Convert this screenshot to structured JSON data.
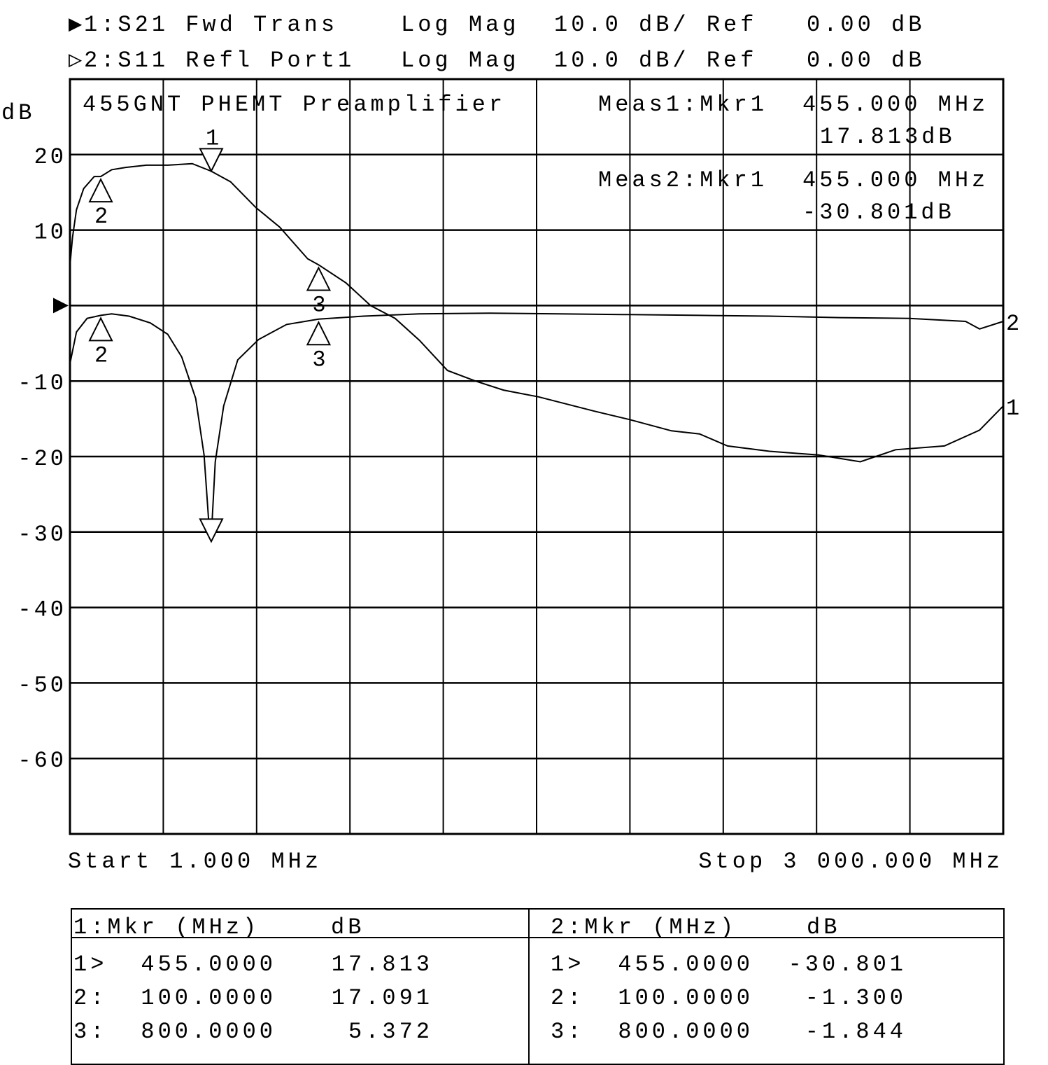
{
  "header": {
    "trace1": {
      "indicator": "▶",
      "label": "1:S21 Fwd Trans",
      "format": "Log Mag",
      "scale": "10.0 dB/ Ref",
      "ref": "0.00 dB"
    },
    "trace2": {
      "indicator": "▷",
      "label": "2:S11 Refl Port1",
      "format": "Log Mag",
      "scale": "10.0 dB/ Ref",
      "ref": "0.00 dB"
    }
  },
  "plot": {
    "title": "455GNT PHEMT Preamplifier",
    "meas1": {
      "label": "Meas1:Mkr1",
      "freq": "455.000 MHz",
      "value": "17.813dB"
    },
    "meas2": {
      "label": "Meas2:Mkr1",
      "freq": "455.000 MHz",
      "value": "-30.801dB"
    },
    "start": "Start 1.000 MHz",
    "stop": "Stop 3 000.000 MHz"
  },
  "chart_data": {
    "type": "line",
    "title": "455GNT PHEMT Preamplifier",
    "ylabel": "dB",
    "xlabel": "",
    "xlim": [
      1,
      3000
    ],
    "ylim": [
      -70,
      30
    ],
    "x_unit": "MHz",
    "yticks": [
      20,
      10,
      -10,
      -20,
      -30,
      -40,
      -50,
      -60
    ],
    "ref_level": 0,
    "grid": true,
    "grid_divisions": {
      "x": 10,
      "y": 10
    },
    "series": [
      {
        "name": "1",
        "x": [
          1,
          9,
          22,
          45,
          79,
          100,
          135,
          180,
          247,
          315,
          394,
          455,
          517,
          598,
          675,
          765,
          800,
          888,
          967,
          1046,
          1124,
          1214,
          1304,
          1394,
          1507,
          1687,
          1799,
          1934,
          2024,
          2114,
          2249,
          2406,
          2541,
          2654,
          2811,
          2924,
          3000
        ],
        "y": [
          5.3,
          9.0,
          12.7,
          15.5,
          17.1,
          17.1,
          18.0,
          18.3,
          18.6,
          18.6,
          18.8,
          17.8,
          16.4,
          13.0,
          10.4,
          6.2,
          5.4,
          3.0,
          0,
          -1.7,
          -4.6,
          -8.6,
          -10.0,
          -11.2,
          -12.1,
          -14.0,
          -15.1,
          -16.6,
          -17.0,
          -18.6,
          -19.3,
          -19.8,
          -20.7,
          -19.1,
          -18.6,
          -16.5,
          -13.3
        ]
      },
      {
        "name": "2",
        "x": [
          1,
          22,
          56,
          100,
          135,
          191,
          259,
          315,
          360,
          405,
          432,
          450,
          455,
          468,
          495,
          540,
          607,
          697,
          800,
          945,
          1124,
          1349,
          1574,
          1799,
          2024,
          2249,
          2474,
          2699,
          2879,
          2924,
          3000
        ],
        "y": [
          -7.7,
          -3.5,
          -1.7,
          -1.3,
          -1.1,
          -1.4,
          -2.3,
          -3.8,
          -6.8,
          -12.3,
          -19.8,
          -30.4,
          -30.8,
          -20.7,
          -13.3,
          -7.2,
          -4.5,
          -2.5,
          -1.8,
          -1.4,
          -1.1,
          -1.0,
          -1.1,
          -1.2,
          -1.3,
          -1.4,
          -1.6,
          -1.7,
          -2.1,
          -3.1,
          -2.1
        ]
      }
    ],
    "markers": [
      {
        "trace": "1",
        "id": "1",
        "freq": 455,
        "value": 17.813,
        "direction": "down",
        "active": true
      },
      {
        "trace": "1",
        "id": "2",
        "freq": 100,
        "value": 17.091,
        "direction": "up"
      },
      {
        "trace": "1",
        "id": "3",
        "freq": 800,
        "value": 5.372,
        "direction": "up"
      },
      {
        "trace": "2",
        "id": "1",
        "freq": 455,
        "value": -30.801,
        "direction": "down",
        "active": true
      },
      {
        "trace": "2",
        "id": "2",
        "freq": 100,
        "value": -1.3,
        "direction": "up"
      },
      {
        "trace": "2",
        "id": "3",
        "freq": 800,
        "value": -1.844,
        "direction": "up"
      }
    ],
    "colors": {
      "trace": "#000000",
      "background": "#ffffff"
    }
  },
  "table": {
    "left": {
      "header_mkr": "1:Mkr (MHz)",
      "header_db": "dB",
      "rows": [
        {
          "id": "1>",
          "freq": "455.0000",
          "db": "17.813"
        },
        {
          "id": "2:",
          "freq": "100.0000",
          "db": "17.091"
        },
        {
          "id": "3:",
          "freq": "800.0000",
          "db": "5.372"
        }
      ]
    },
    "right": {
      "header_mkr": "2:Mkr (MHz)",
      "header_db": "dB",
      "rows": [
        {
          "id": "1>",
          "freq": "455.0000",
          "db": "-30.801"
        },
        {
          "id": "2:",
          "freq": "100.0000",
          "db": "-1.300"
        },
        {
          "id": "3:",
          "freq": "800.0000",
          "db": "-1.844"
        }
      ]
    }
  }
}
